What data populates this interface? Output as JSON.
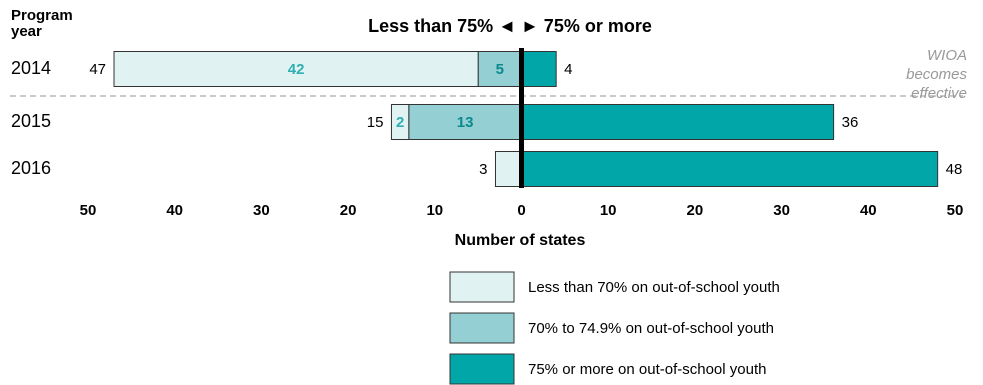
{
  "chart_data": {
    "type": "diverging-bar",
    "title": "Less than 75% ◄ ► 75% or more",
    "category_label": [
      "Program",
      "year"
    ],
    "categories": [
      "2014",
      "2015",
      "2016"
    ],
    "series": [
      {
        "name": "Less than 70% on out-of-school youth",
        "color": "#e1f2f2",
        "side": "left",
        "values": [
          42,
          2,
          3
        ],
        "value_labels": [
          "42",
          "2",
          null
        ]
      },
      {
        "name": "70% to 74.9% on out-of-school youth",
        "color": "#94cfd4",
        "side": "left",
        "values": [
          5,
          13,
          null
        ],
        "value_labels": [
          "5",
          "13",
          null
        ]
      },
      {
        "name": "75% or more on out-of-school youth",
        "color": "#00a6a8",
        "side": "right",
        "values": [
          4,
          36,
          48
        ]
      }
    ],
    "left_totals": [
      47,
      15,
      3
    ],
    "xlabel": "Number of states",
    "xlim": [
      -50,
      50
    ],
    "xticks": [
      {
        "value": -50,
        "label": "50"
      },
      {
        "value": -40,
        "label": "40"
      },
      {
        "value": -30,
        "label": "30"
      },
      {
        "value": -20,
        "label": "20"
      },
      {
        "value": -10,
        "label": "10"
      },
      0,
      10,
      20,
      30,
      40,
      50
    ],
    "annotation": [
      "WIOA",
      "becomes",
      "effective"
    ]
  }
}
